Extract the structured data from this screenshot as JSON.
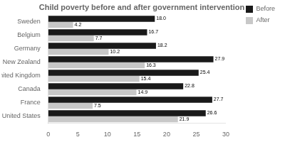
{
  "chart_data": {
    "type": "bar",
    "orientation": "horizontal",
    "title": "Child poverty before and after government intervention",
    "categories": [
      "Sweden",
      "Belgium",
      "Germany",
      "New Zealand",
      "United Kingdom",
      "Canada",
      "France",
      "United States"
    ],
    "series": [
      {
        "name": "Before",
        "color": "#1a1a1a",
        "values": [
          18.0,
          16.7,
          18.2,
          27.9,
          25.4,
          22.8,
          27.7,
          26.6
        ],
        "value_labels": [
          "18.0",
          "16.7",
          "18.2",
          "27.9",
          "25.4",
          "22.8",
          "27.7",
          "26.6"
        ]
      },
      {
        "name": "After",
        "color": "#c8c8c8",
        "values": [
          4.2,
          7.7,
          10.2,
          16.3,
          15.4,
          14.9,
          7.5,
          21.9
        ],
        "value_labels": [
          "4.2",
          "7.7",
          "10.2",
          "16.3",
          "15.4",
          "14.9",
          "7.5",
          "21.9"
        ]
      }
    ],
    "xlim": [
      0,
      30
    ],
    "xticks": [
      0,
      5,
      10,
      15,
      20,
      25,
      30
    ],
    "grid": false,
    "legend": "right",
    "data_labels": true
  }
}
